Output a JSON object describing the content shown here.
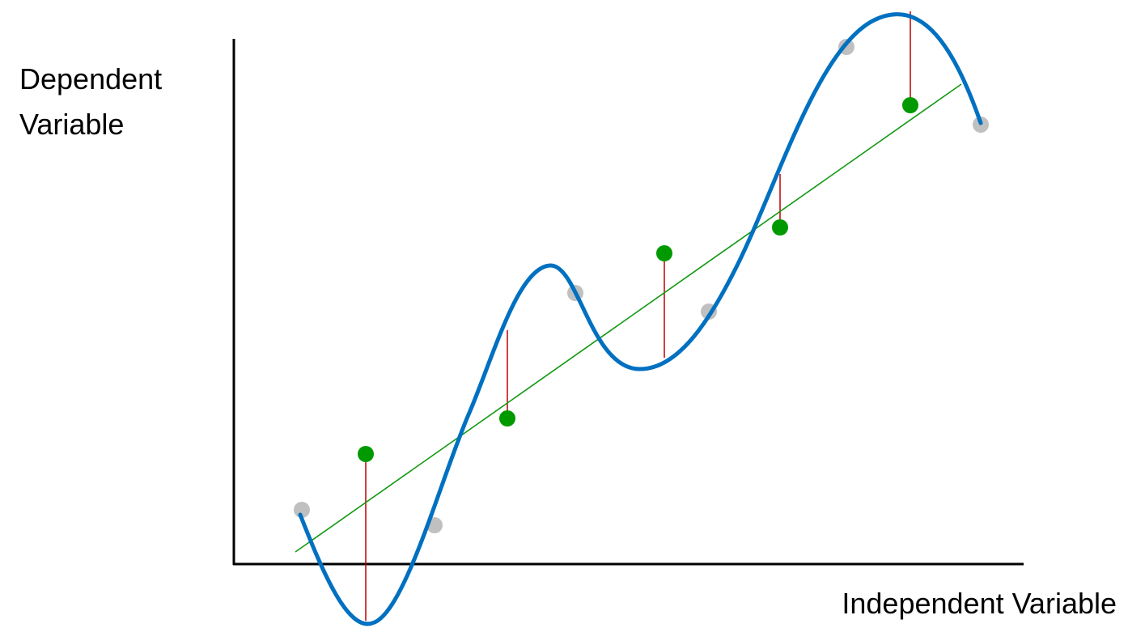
{
  "axes": {
    "y_label_lines": [
      "Dependent",
      "Variable"
    ],
    "x_label": "Independent Variable"
  }
}
